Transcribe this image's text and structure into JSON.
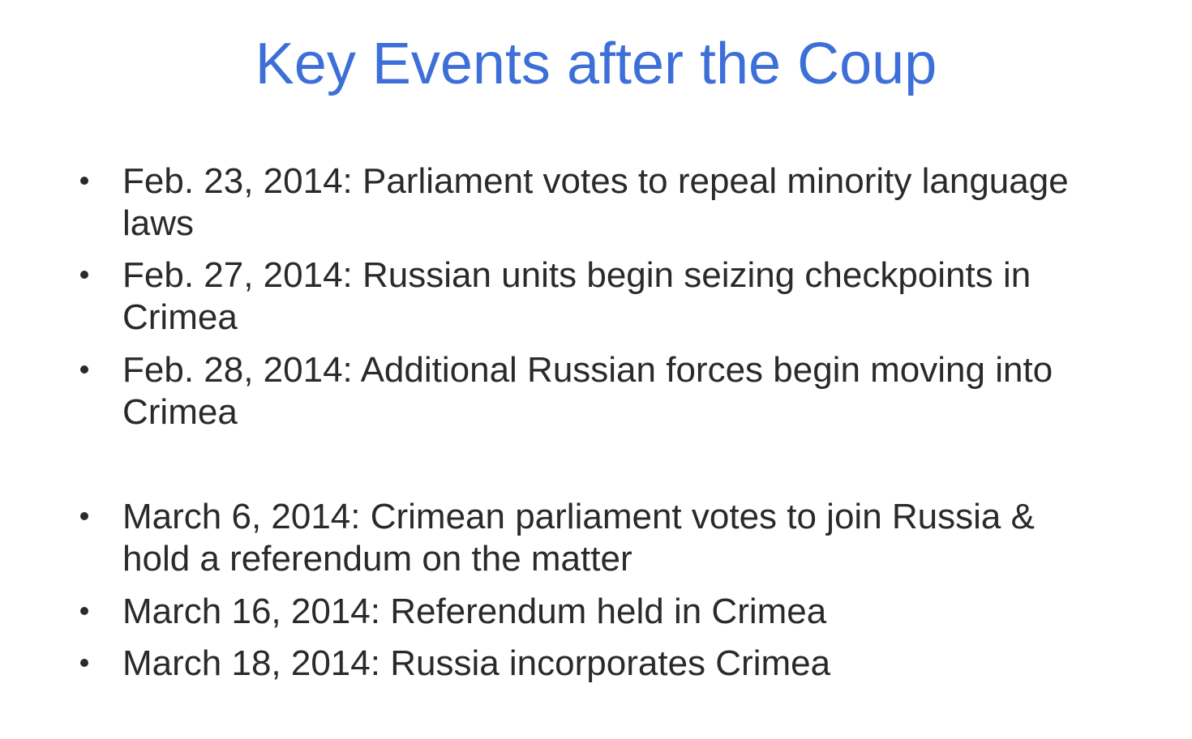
{
  "slide": {
    "title": "Key Events after the Coup",
    "bullets": [
      "Feb. 23, 2014: Parliament votes to repeal minority language laws",
      "Feb. 27, 2014: Russian units begin seizing checkpoints in Crimea",
      "Feb. 28, 2014: Additional Russian forces begin moving into Crimea",
      "March 6, 2014: Crimean parliament votes to join Russia & hold a referendum on the matter",
      "March 16, 2014: Referendum held in Crimea",
      "March 18, 2014: Russia incorporates Crimea"
    ],
    "colors": {
      "title": "#3d6fd8",
      "text": "#2a2a2a",
      "background": "#ffffff"
    }
  }
}
